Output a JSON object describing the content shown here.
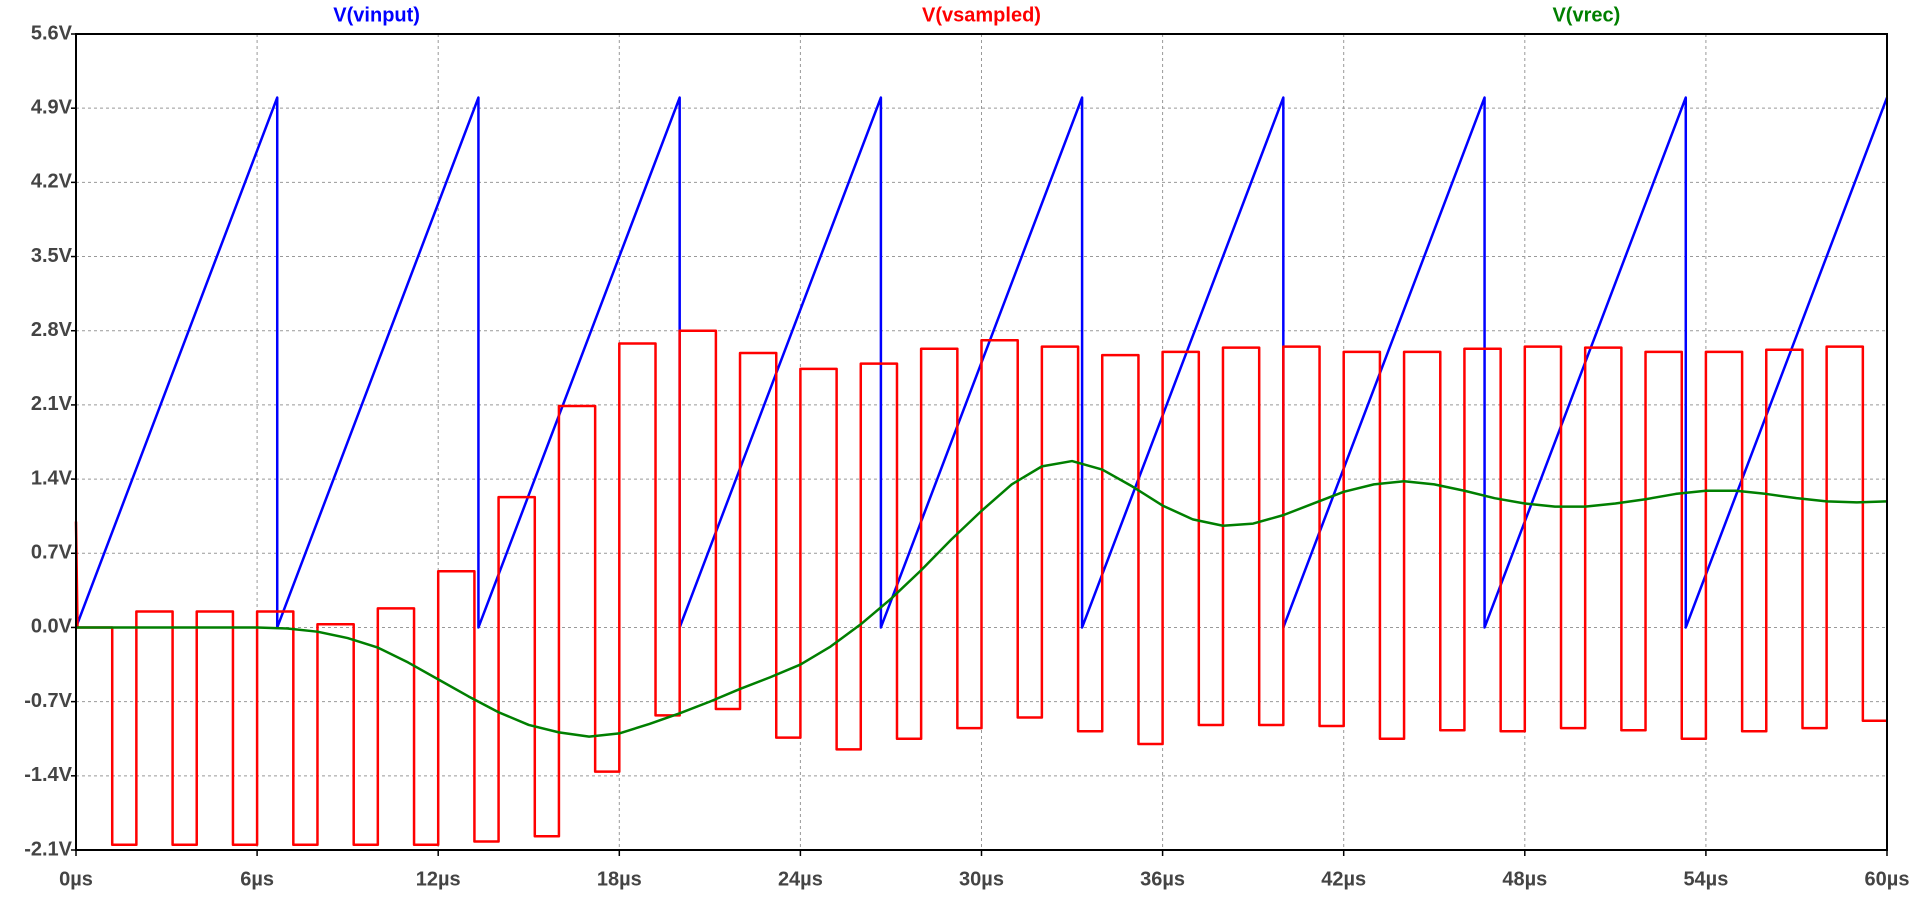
{
  "chart_data": {
    "type": "line",
    "xticks": [
      {
        "value": 0,
        "label": "0µs"
      },
      {
        "value": 6,
        "label": "6µs"
      },
      {
        "value": 12,
        "label": "12µs"
      },
      {
        "value": 18,
        "label": "18µs"
      },
      {
        "value": 24,
        "label": "24µs"
      },
      {
        "value": 30,
        "label": "30µs"
      },
      {
        "value": 36,
        "label": "36µs"
      },
      {
        "value": 42,
        "label": "42µs"
      },
      {
        "value": 48,
        "label": "48µs"
      },
      {
        "value": 54,
        "label": "54µs"
      },
      {
        "value": 60,
        "label": "60µs"
      }
    ],
    "xlim": [
      0,
      60
    ],
    "ylim": [
      -2.1,
      5.6
    ],
    "yticks": [
      {
        "value": -2.1,
        "label": "-2.1V"
      },
      {
        "value": -1.4,
        "label": "-1.4V"
      },
      {
        "value": -0.7,
        "label": "-0.7V"
      },
      {
        "value": 0,
        "label": "0.0V"
      },
      {
        "value": 0.7,
        "label": "0.7V"
      },
      {
        "value": 1.4,
        "label": "1.4V"
      },
      {
        "value": 2.1,
        "label": "2.1V"
      },
      {
        "value": 2.8,
        "label": "2.8V"
      },
      {
        "value": 3.5,
        "label": "3.5V"
      },
      {
        "value": 4.2,
        "label": "4.2V"
      },
      {
        "value": 4.9,
        "label": "4.9V"
      },
      {
        "value": 5.6,
        "label": "5.6V"
      }
    ],
    "grid": true,
    "series": [
      {
        "name": "V(vinput)",
        "color": "#0000ff",
        "x": [
          0,
          6.667,
          6.667,
          13.333,
          13.333,
          20,
          20,
          26.667,
          26.667,
          33.333,
          33.333,
          40,
          40,
          46.667,
          46.667,
          53.333,
          53.333,
          60
        ],
        "values": [
          0,
          5,
          0,
          5,
          0,
          5,
          0,
          5,
          0,
          5,
          0,
          5,
          0,
          5,
          0,
          5,
          0,
          5
        ]
      },
      {
        "name": "V(vsampled)",
        "color": "#ff0000",
        "x": [
          0,
          0.05,
          1.2,
          1.2,
          2,
          2,
          3.2,
          3.2,
          4,
          4,
          5.2,
          5.2,
          6,
          6,
          7.2,
          7.2,
          8,
          8,
          9.2,
          9.2,
          10,
          10,
          11.2,
          11.2,
          12,
          12,
          13.2,
          13.2,
          14,
          14,
          15.2,
          15.2,
          16,
          16,
          17.2,
          17.2,
          18,
          18,
          19.2,
          19.2,
          20,
          20,
          21.2,
          21.2,
          22,
          22,
          23.2,
          23.2,
          24,
          24,
          25.2,
          25.2,
          26,
          26,
          27.2,
          27.2,
          28,
          28,
          29.2,
          29.2,
          30,
          30,
          31.2,
          31.2,
          32,
          32,
          33.2,
          33.2,
          34,
          34,
          35.2,
          35.2,
          36,
          36,
          37.2,
          37.2,
          38,
          38,
          39.2,
          39.2,
          40,
          40,
          41.2,
          41.2,
          42,
          42,
          43.2,
          43.2,
          44,
          44,
          45.2,
          45.2,
          46,
          46,
          47.2,
          47.2,
          48,
          48,
          49.2,
          49.2,
          50,
          50,
          51.2,
          51.2,
          52,
          52,
          53.2,
          53.2,
          54,
          54,
          55.2,
          55.2,
          56,
          56,
          57.2,
          57.2,
          58,
          58,
          59.2,
          59.2,
          60
        ],
        "values": [
          1.0,
          0,
          0,
          -2.05,
          -2.05,
          0.15,
          0.15,
          -2.05,
          -2.05,
          0.15,
          0.15,
          -2.05,
          -2.05,
          0.15,
          0.15,
          -2.05,
          -2.05,
          0.03,
          0.03,
          -2.05,
          -2.05,
          0.18,
          0.18,
          -2.05,
          -2.05,
          0.53,
          0.53,
          -2.02,
          -2.02,
          1.23,
          1.23,
          -1.97,
          -1.97,
          2.09,
          2.09,
          -1.36,
          -1.36,
          2.68,
          2.68,
          -0.83,
          -0.83,
          2.8,
          2.8,
          -0.77,
          -0.77,
          2.59,
          2.59,
          -1.04,
          -1.04,
          2.44,
          2.44,
          -1.15,
          -1.15,
          2.49,
          2.49,
          -1.05,
          -1.05,
          2.63,
          2.63,
          -0.95,
          -0.95,
          2.71,
          2.71,
          -0.85,
          -0.85,
          2.65,
          2.65,
          -0.98,
          -0.98,
          2.57,
          2.57,
          -1.1,
          -1.1,
          2.6,
          2.6,
          -0.92,
          -0.92,
          2.64,
          2.64,
          -0.92,
          -0.92,
          2.65,
          2.65,
          -0.93,
          -0.93,
          2.6,
          2.6,
          -1.05,
          -1.05,
          2.6,
          2.6,
          -0.97,
          -0.97,
          2.63,
          2.63,
          -0.98,
          -0.98,
          2.65,
          2.65,
          -0.95,
          -0.95,
          2.64,
          2.64,
          -0.97,
          -0.97,
          2.6,
          2.6,
          -1.05,
          -1.05,
          2.6,
          2.6,
          -0.98,
          -0.98,
          2.62,
          2.62,
          -0.95,
          -0.95,
          2.65,
          2.65,
          -0.88,
          -0.88
        ]
      },
      {
        "name": "V(vrec)",
        "color": "#007f00",
        "x": [
          0,
          1,
          2,
          3,
          4,
          5,
          6,
          7,
          8,
          9,
          10,
          11,
          12,
          13,
          14,
          15,
          16,
          17,
          18,
          19,
          20,
          21,
          22,
          23,
          24,
          25,
          26,
          27,
          28,
          29,
          30,
          31,
          32,
          33,
          34,
          35,
          36,
          37,
          38,
          39,
          40,
          41,
          42,
          43,
          44,
          45,
          46,
          47,
          48,
          49,
          50,
          51,
          52,
          53,
          54,
          55,
          56,
          57,
          58,
          59,
          60
        ],
        "values": [
          0,
          0,
          0,
          0,
          0,
          0,
          0,
          -0.01,
          -0.04,
          -0.1,
          -0.19,
          -0.33,
          -0.49,
          -0.65,
          -0.8,
          -0.92,
          -0.99,
          -1.03,
          -1.0,
          -0.91,
          -0.81,
          -0.7,
          -0.58,
          -0.47,
          -0.35,
          -0.18,
          0.03,
          0.27,
          0.54,
          0.83,
          1.1,
          1.35,
          1.52,
          1.57,
          1.49,
          1.33,
          1.15,
          1.02,
          0.96,
          0.98,
          1.06,
          1.17,
          1.28,
          1.35,
          1.38,
          1.35,
          1.29,
          1.22,
          1.17,
          1.14,
          1.14,
          1.17,
          1.21,
          1.26,
          1.29,
          1.29,
          1.26,
          1.22,
          1.19,
          1.18,
          1.19
        ]
      }
    ]
  }
}
